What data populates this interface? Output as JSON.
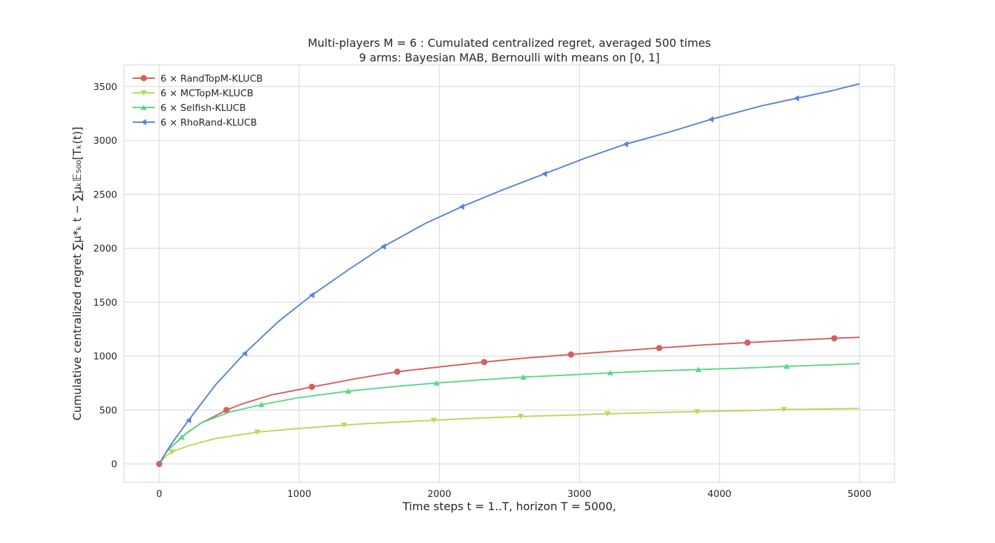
{
  "chart_data": {
    "type": "line",
    "title_line1": "Multi-players M = 6 : Cumulated centralized regret, averaged 500 times",
    "title_line2": "9 arms: Bayesian MAB, Bernoulli with means on [0, 1]",
    "xlabel": "Time steps t = 1..T, horizon T = 5000,",
    "ylabel": "Cumulative centralized regret ∑μ*ₖ t − ∑μₖ𝔼₅₀₀[Tₖ(t)]",
    "xlim": [
      -250,
      5250
    ],
    "ylim": [
      -170,
      3700
    ],
    "xticks": [
      0,
      1000,
      2000,
      3000,
      4000,
      5000
    ],
    "yticks": [
      0,
      500,
      1000,
      1500,
      2000,
      2500,
      3000,
      3500
    ],
    "grid": true,
    "legend_position": "top-left",
    "series": [
      {
        "name": "6 × RandTopM-KLUCB",
        "color": "#d65f5f",
        "marker": "circle",
        "x": [
          0,
          50,
          100,
          200,
          300,
          400,
          480,
          600,
          800,
          1000,
          1090,
          1200,
          1400,
          1700,
          2000,
          2320,
          2600,
          2940,
          3200,
          3570,
          3900,
          4200,
          4500,
          4820,
          5000
        ],
        "y": [
          0,
          110,
          175,
          290,
          380,
          445,
          500,
          560,
          640,
          690,
          715,
          740,
          790,
          855,
          900,
          945,
          980,
          1015,
          1040,
          1075,
          1105,
          1125,
          1145,
          1165,
          1175
        ]
      },
      {
        "name": "6 × MCTopM-KLUCB",
        "color": "#b8d95c",
        "marker": "triangle-down",
        "x": [
          0,
          50,
          90,
          200,
          400,
          700,
          1000,
          1320,
          1500,
          1960,
          2200,
          2580,
          3000,
          3200,
          3500,
          3840,
          4200,
          4460,
          4800,
          5000
        ],
        "y": [
          0,
          75,
          110,
          165,
          235,
          295,
          330,
          360,
          375,
          405,
          420,
          440,
          455,
          465,
          475,
          485,
          495,
          505,
          510,
          515
        ]
      },
      {
        "name": "6 × Selfish-KLUCB",
        "color": "#5ad88a",
        "marker": "triangle-up",
        "x": [
          0,
          50,
          160,
          300,
          500,
          730,
          1000,
          1350,
          1700,
          1980,
          2300,
          2600,
          3000,
          3220,
          3500,
          3850,
          4200,
          4480,
          4800,
          5000
        ],
        "y": [
          0,
          110,
          250,
          380,
          480,
          550,
          615,
          675,
          720,
          750,
          780,
          805,
          830,
          845,
          860,
          875,
          890,
          905,
          920,
          930
        ]
      },
      {
        "name": "6 × RhoRand-KLUCB",
        "color": "#5b83d6",
        "marker": "triangle-left",
        "x": [
          0,
          50,
          100,
          210,
          400,
          610,
          850,
          1090,
          1350,
          1600,
          1900,
          2160,
          2450,
          2750,
          3050,
          3330,
          3650,
          3940,
          4300,
          4550,
          4800,
          5000
        ],
        "y": [
          0,
          110,
          210,
          405,
          730,
          1025,
          1320,
          1565,
          1800,
          2015,
          2230,
          2385,
          2540,
          2690,
          2840,
          2965,
          3080,
          3195,
          3320,
          3390,
          3460,
          3525
        ]
      }
    ],
    "marker_x": {
      "6 × RandTopM-KLUCB": [
        0,
        480,
        1090,
        1700,
        2320,
        2940,
        3570,
        4200,
        4820
      ],
      "6 × MCTopM-KLUCB": [
        90,
        700,
        1320,
        1960,
        2580,
        3200,
        3840,
        4460
      ],
      "6 × Selfish-KLUCB": [
        160,
        730,
        1350,
        1980,
        2600,
        3220,
        3850,
        4480
      ],
      "6 × RhoRand-KLUCB": [
        210,
        610,
        1090,
        1600,
        2160,
        2750,
        3330,
        3940,
        4550
      ]
    }
  }
}
